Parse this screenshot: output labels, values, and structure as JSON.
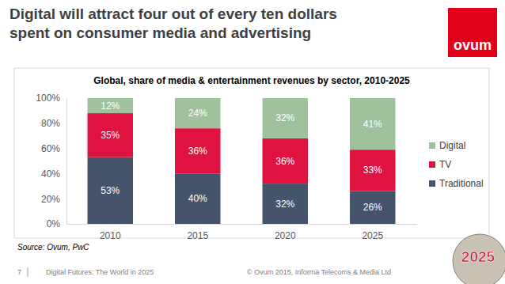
{
  "chart_data": {
    "type": "bar",
    "title": "Global, share of media & entertainment revenues by sector, 2010-2025",
    "categories": [
      "2010",
      "2015",
      "2020",
      "2025"
    ],
    "series": [
      {
        "name": "Traditional",
        "color": "#44546a",
        "values": [
          53,
          40,
          32,
          26
        ],
        "value_labels": [
          "53%",
          "40%",
          "32%",
          "26%"
        ]
      },
      {
        "name": "TV",
        "color": "#e0123f",
        "values": [
          35,
          36,
          36,
          33
        ],
        "value_labels": [
          "35%",
          "36%",
          "36%",
          "33%"
        ]
      },
      {
        "name": "Digital",
        "color": "#9fc29c",
        "values": [
          12,
          24,
          32,
          41
        ],
        "value_labels": [
          "12%",
          "24%",
          "32%",
          "41%"
        ]
      }
    ],
    "ylim": [
      0,
      100
    ],
    "yticks": [
      {
        "value": 0,
        "label": "0%"
      },
      {
        "value": 20,
        "label": "20%"
      },
      {
        "value": 40,
        "label": "40%"
      },
      {
        "value": 60,
        "label": "60%"
      },
      {
        "value": 80,
        "label": "80%"
      },
      {
        "value": 100,
        "label": "100%"
      }
    ],
    "stacked": true,
    "data_labels": true,
    "grid": false,
    "legend": "right",
    "source": "Source: Ovum, PwC"
  },
  "slide": {
    "headline": [
      "Digital will attract four out of every ten dollars",
      "spent on consumer media and advertising"
    ],
    "logo": "ovum",
    "page_number": "7",
    "footer": "Digital Futures: The World in 2025",
    "copyright": "© Ovum 2015, Informa Telecoms & Media Ltd",
    "badge": "2025"
  }
}
